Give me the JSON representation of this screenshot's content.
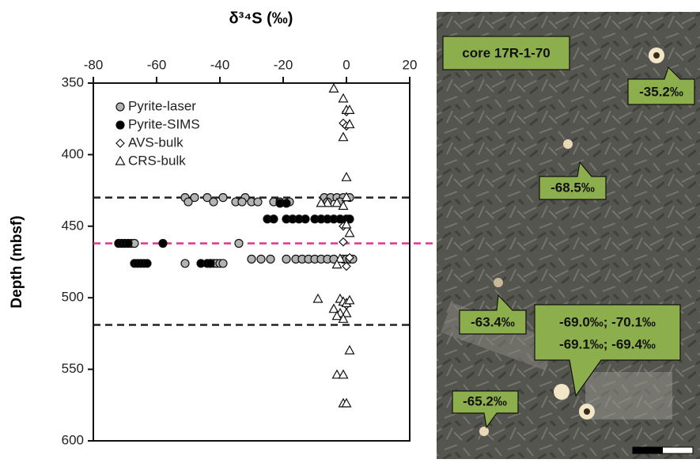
{
  "chart_data": {
    "type": "scatter",
    "title": "δ³⁴S (‰)",
    "ylabel": "Depth (mbsf)",
    "xlim": [
      -80,
      20
    ],
    "xticks": [
      -80,
      -60,
      -40,
      -20,
      0,
      20
    ],
    "ylim": [
      350,
      600
    ],
    "yticks": [
      350,
      400,
      450,
      500,
      550,
      600
    ],
    "y_inverted": true,
    "legend": "top-left",
    "hlines": [
      {
        "y": 430,
        "color": "#222222"
      },
      {
        "y": 462,
        "color": "#e0338f"
      },
      {
        "y": 519,
        "color": "#222222"
      }
    ],
    "series": [
      {
        "name": "Pyrite-laser",
        "color": "#b3b3b3",
        "marker": "circle",
        "x": [
          -51,
          -48,
          -44,
          -39,
          -32,
          -7,
          -5,
          -3,
          -1,
          1,
          -50,
          -42,
          -35,
          -33,
          -30,
          -28,
          -23,
          -21,
          -18,
          -6,
          -2,
          -72,
          -71,
          -70,
          -69,
          -68,
          -67,
          -34,
          -30,
          -27,
          -24,
          -19,
          -16,
          -14,
          -12,
          -10,
          -8,
          -6,
          -4,
          -1,
          0,
          1,
          2,
          -51,
          -43,
          -42,
          -41,
          -40,
          -39
        ],
        "values": [
          430,
          430,
          430,
          430,
          430,
          430,
          430,
          430,
          430,
          430,
          433,
          433,
          433,
          433,
          433,
          433,
          433,
          433,
          433,
          433,
          433,
          462,
          462,
          462,
          462,
          462,
          462,
          462,
          473,
          473,
          473,
          473,
          473,
          473,
          473,
          473,
          473,
          473,
          473,
          473,
          473,
          473,
          473,
          476,
          476,
          476,
          476,
          476,
          476
        ]
      },
      {
        "name": "Pyrite-SIMS",
        "color": "#000000",
        "marker": "circle",
        "x": [
          -21,
          -19,
          -25,
          -23,
          -19,
          -17,
          -15,
          -13,
          -10,
          -8,
          -6,
          -4,
          -2,
          0,
          1,
          -72,
          -71,
          -70,
          -69,
          -58,
          -67,
          -66,
          -65,
          -64,
          -63,
          -46,
          -44,
          -43
        ],
        "values": [
          434,
          434,
          445,
          445,
          445,
          445,
          445,
          445,
          445,
          445,
          445,
          445,
          445,
          445,
          445,
          462,
          462,
          462,
          462,
          462,
          476,
          476,
          476,
          476,
          476,
          476,
          476,
          476
        ]
      },
      {
        "name": "AVS-bulk",
        "color": "#ffffff",
        "marker": "diamond",
        "x": [
          0,
          -1,
          0,
          -1,
          -1,
          0,
          1,
          0
        ],
        "values": [
          370,
          378,
          380,
          450,
          461,
          478,
          472,
          505
        ]
      },
      {
        "name": "CRS-bulk",
        "color": "#ffffff",
        "marker": "triangle",
        "x": [
          -4,
          -1,
          0,
          1,
          1,
          -1,
          0,
          0,
          -3,
          -6,
          -8,
          -1,
          0,
          1,
          -2,
          -3,
          -9,
          -2,
          -1,
          0,
          1,
          -4,
          -2,
          -3,
          0,
          -1,
          1,
          -3,
          -1,
          -1,
          0
        ],
        "values": [
          354,
          361,
          369,
          369,
          379,
          388,
          416,
          430,
          434,
          434,
          434,
          436,
          449,
          455,
          473,
          477,
          501,
          501,
          503,
          504,
          502,
          508,
          511,
          513,
          511,
          515,
          537,
          554,
          554,
          574,
          574
        ]
      }
    ]
  },
  "photo": {
    "label": "core 17R-1-70",
    "callouts": [
      "-35.2‰",
      "-68.5‰",
      "-63.4‰",
      "-69.0‰;  -70.1‰",
      "-69.1‰;  -69.4‰",
      "-65.2‰"
    ]
  }
}
